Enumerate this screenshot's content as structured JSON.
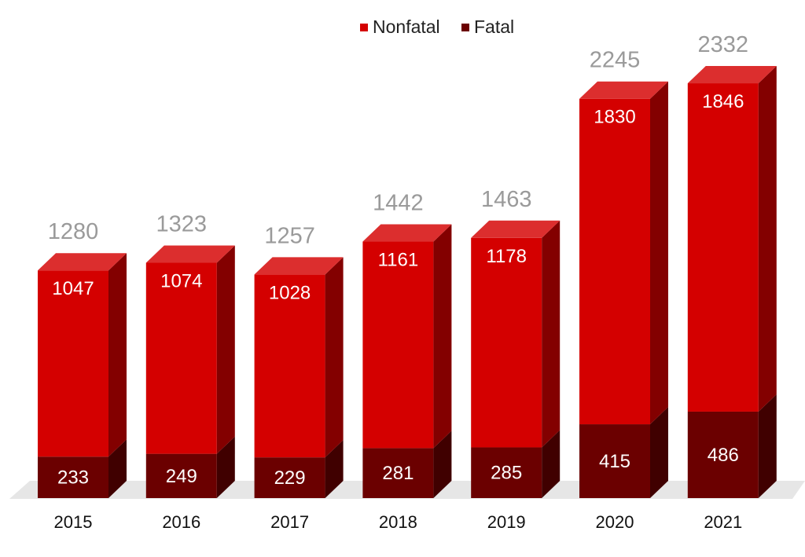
{
  "chart_data": {
    "type": "bar",
    "stacked": true,
    "style": "3d",
    "categories": [
      "2015",
      "2016",
      "2017",
      "2018",
      "2019",
      "2020",
      "2021"
    ],
    "series": [
      {
        "name": "Fatal",
        "color": "#6b0000",
        "values": [
          233,
          249,
          229,
          281,
          285,
          415,
          486
        ]
      },
      {
        "name": "Nonfatal",
        "color": "#d40000",
        "values": [
          1047,
          1074,
          1028,
          1161,
          1178,
          1830,
          1846
        ]
      }
    ],
    "totals": [
      1280,
      1323,
      1257,
      1442,
      1463,
      2245,
      2332
    ],
    "legend_position": "top",
    "grid": false
  }
}
